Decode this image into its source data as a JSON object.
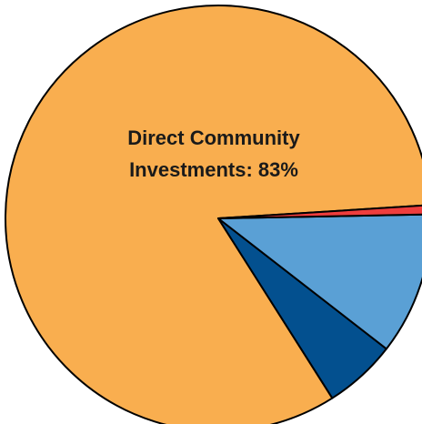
{
  "chart_data": {
    "type": "pie",
    "slices": [
      {
        "value": 83,
        "color": "#F9AE4F",
        "label_lines": [
          "Direct Community",
          "Investments: 83%"
        ]
      },
      {
        "value": 5.5,
        "color": "#03508F",
        "label_lines": []
      },
      {
        "value": 10.8,
        "color": "#5AA0D5",
        "label_lines": []
      },
      {
        "value": 0.7,
        "color": "#EE3D3D",
        "label_lines": []
      }
    ],
    "outline_color": "#000000"
  }
}
